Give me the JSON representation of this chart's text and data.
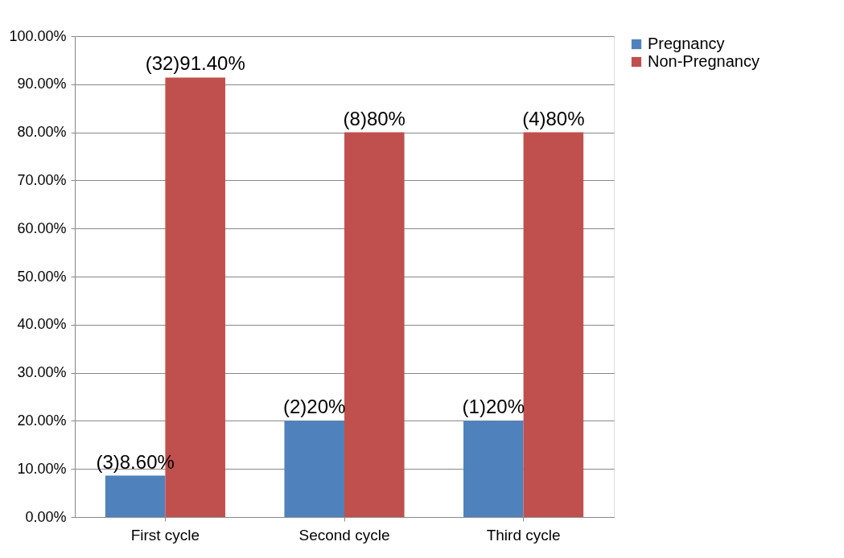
{
  "chart_data": {
    "type": "bar",
    "categories": [
      "First cycle",
      "Second cycle",
      "Third cycle"
    ],
    "series": [
      {
        "name": "Pregnancy",
        "color": "#4f81bd",
        "values": [
          8.6,
          20,
          20
        ],
        "value_labels": [
          "(3)8.60%",
          "(2)20%",
          "(1)20%"
        ]
      },
      {
        "name": "Non-Pregnancy",
        "color": "#c0504d",
        "values": [
          91.4,
          80,
          80
        ],
        "value_labels": [
          "(32)91.40%",
          "(8)80%",
          "(4)80%"
        ]
      }
    ],
    "ylim": [
      0,
      100
    ],
    "yticks": [
      {
        "value": 0,
        "label": "0.00%"
      },
      {
        "value": 10,
        "label": "10.00%"
      },
      {
        "value": 20,
        "label": "20.00%"
      },
      {
        "value": 30,
        "label": "30.00%"
      },
      {
        "value": 40,
        "label": "40.00%"
      },
      {
        "value": 50,
        "label": "50.00%"
      },
      {
        "value": 60,
        "label": "60.00%"
      },
      {
        "value": 70,
        "label": "70.00%"
      },
      {
        "value": 80,
        "label": "80.00%"
      },
      {
        "value": 90,
        "label": "90.00%"
      },
      {
        "value": 100,
        "label": "100.00%"
      }
    ],
    "grid": "y",
    "legend": "right"
  }
}
